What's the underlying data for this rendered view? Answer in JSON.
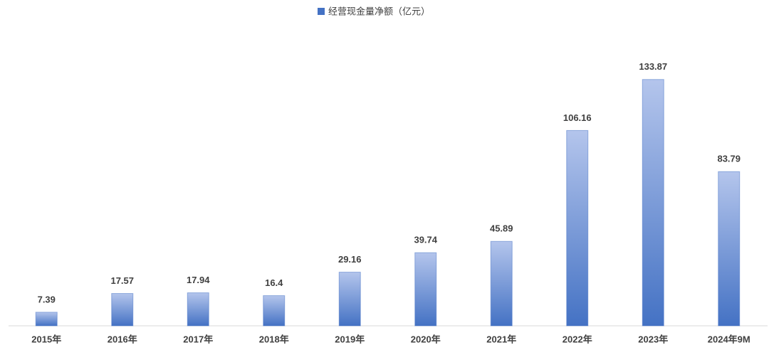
{
  "chart_data": {
    "type": "bar",
    "categories": [
      "2015年",
      "2016年",
      "2017年",
      "2018年",
      "2019年",
      "2020年",
      "2021年",
      "2022年",
      "2023年",
      "2024年9M"
    ],
    "series": [
      {
        "name": "经营现金量净额（亿元）",
        "color": "#4472c4",
        "values": [
          7.39,
          17.57,
          17.94,
          16.4,
          29.16,
          39.74,
          45.89,
          106.16,
          133.87,
          83.79
        ]
      }
    ],
    "ylim": [
      0,
      150
    ],
    "legend": "top"
  }
}
